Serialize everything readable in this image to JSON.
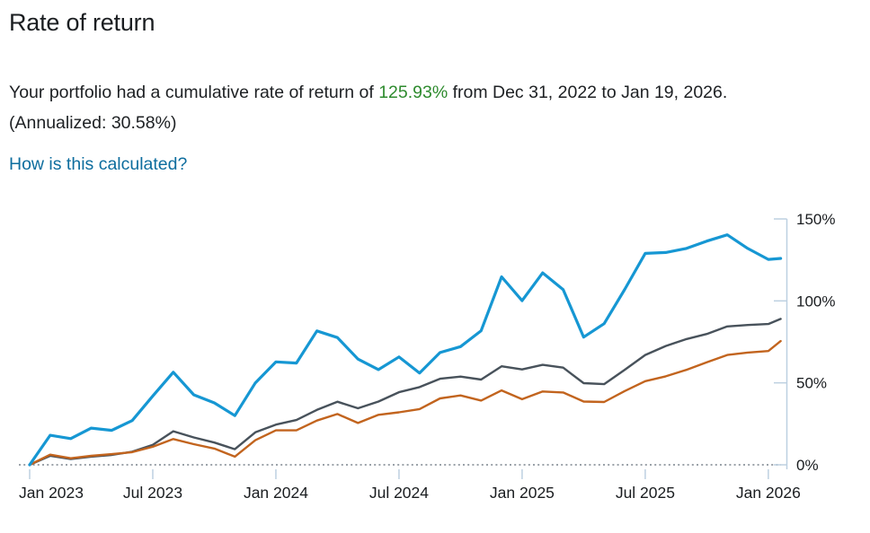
{
  "page": {
    "title": "Rate of return"
  },
  "summary": {
    "prefix": "Your portfolio had a cumulative rate of return of ",
    "highlight": "125.93%",
    "suffix": " from Dec 31, 2022 to Jan 19, 2026. (Annualized: 30.58%)",
    "highlight_color": "#2e8b2e",
    "annualized": "30.58%"
  },
  "link": {
    "label": "How is this calculated?",
    "color": "#0d6d9e"
  },
  "chart_data": {
    "type": "line",
    "title": "Cumulative rate of return",
    "start_date": "Dec 31, 2022",
    "end_date": "Jan 19, 2026",
    "ylim": [
      0,
      150
    ],
    "y_ticks": [
      0,
      50,
      100,
      150
    ],
    "y_tick_labels": [
      "0%",
      "50%",
      "100%",
      "150%"
    ],
    "x_tick_labels": [
      "Jan 2023",
      "Jul 2023",
      "Jan 2024",
      "Jul 2024",
      "Jan 2025",
      "Jul 2025",
      "Jan 2026"
    ],
    "x_tick_month_index": [
      0,
      6,
      12,
      18,
      24,
      30,
      36
    ],
    "grid": "none",
    "zero_line_style": "dotted",
    "legend_position": "none",
    "y_axis_side": "right",
    "colors": {
      "axis": "#bdd0e1",
      "zero_line": "#8d959d",
      "tick_text": "#1a1d20"
    },
    "month_index": [
      0,
      1,
      2,
      3,
      4,
      5,
      6,
      7,
      8,
      9,
      10,
      11,
      12,
      13,
      14,
      15,
      16,
      17,
      18,
      19,
      20,
      21,
      22,
      23,
      24,
      25,
      26,
      27,
      28,
      29,
      30,
      31,
      32,
      33,
      34,
      35,
      36,
      36.6
    ],
    "series": [
      {
        "name": "gray-line",
        "color": "#48525b",
        "width": 2.4,
        "values": [
          0,
          5.5,
          3.5,
          5,
          6,
          8,
          12.2,
          20.5,
          16.7,
          13.6,
          9.5,
          19.8,
          24.5,
          27.3,
          33.5,
          38.5,
          34.5,
          38.6,
          44.3,
          47.4,
          52.5,
          53.8,
          52,
          60.1,
          58.2,
          61,
          59.3,
          49.8,
          49.2,
          58,
          67,
          72.5,
          76.7,
          79.8,
          84.4,
          85.3,
          85.9,
          89
        ]
      },
      {
        "name": "orange-line",
        "color": "#c2641e",
        "width": 2.4,
        "values": [
          0,
          6.2,
          4,
          5.5,
          6.5,
          7.7,
          11,
          15.7,
          12.6,
          9.9,
          5,
          15,
          21,
          21,
          27,
          31,
          25.5,
          30.5,
          32,
          34,
          40.5,
          42.3,
          39.2,
          45.4,
          40,
          44.7,
          44.1,
          38.6,
          38.3,
          45,
          51,
          54,
          57.9,
          62.5,
          67,
          68.5,
          69.4,
          75.5
        ]
      },
      {
        "name": "portfolio-blue-line",
        "color": "#1697d3",
        "width": 3.2,
        "values": [
          0,
          18,
          16,
          22.4,
          21,
          27,
          42,
          56.5,
          42.7,
          37.8,
          30,
          50,
          62.8,
          62.1,
          81.7,
          77.6,
          64.5,
          58.1,
          65.8,
          56,
          68.5,
          72.1,
          81.8,
          114.7,
          100.1,
          117.1,
          106.9,
          77.9,
          86.1,
          107,
          129,
          129.5,
          132,
          136.5,
          140.3,
          132,
          125.3,
          125.93
        ]
      }
    ]
  }
}
